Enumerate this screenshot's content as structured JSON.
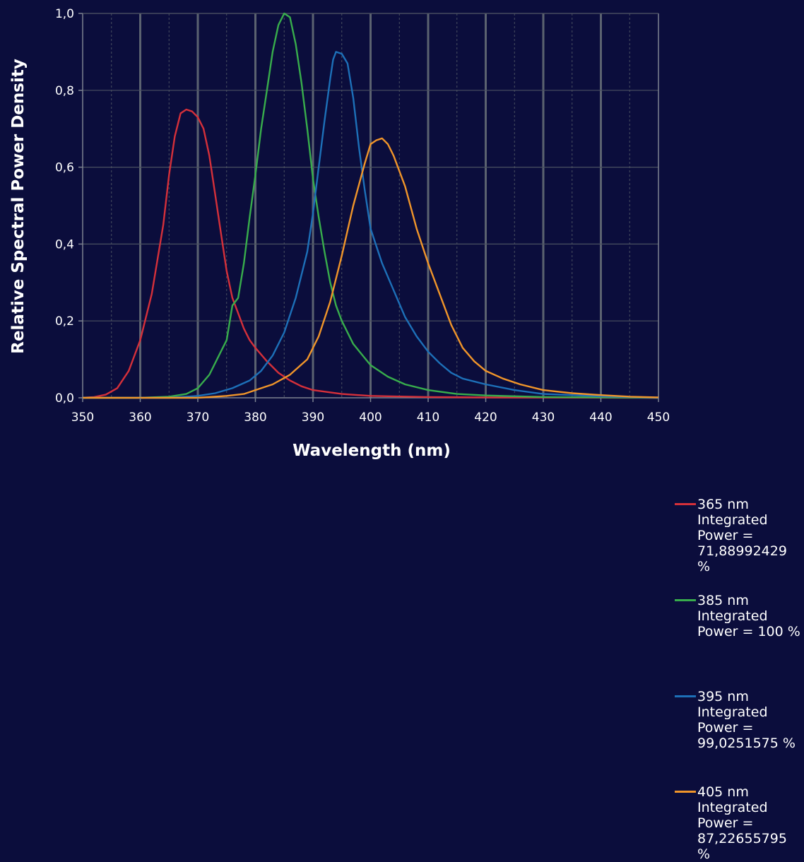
{
  "chart_data": {
    "type": "line",
    "xlabel": "Wavelength (nm)",
    "ylabel": "Relative Spectral Power Density",
    "xlim": [
      350,
      450
    ],
    "ylim": [
      0,
      1.0
    ],
    "x_ticks": [
      350,
      360,
      370,
      380,
      390,
      400,
      410,
      420,
      430,
      440,
      450
    ],
    "x_tick_labels": [
      "350",
      "360",
      "370",
      "380",
      "390",
      "400",
      "410",
      "420",
      "430",
      "440",
      "450"
    ],
    "y_ticks": [
      0,
      0.2,
      0.4,
      0.6,
      0.8,
      1.0
    ],
    "y_tick_labels": [
      "0,0",
      "0,2",
      "0,4",
      "0,6",
      "0,8",
      "1,0"
    ],
    "grid": true,
    "legend_position": "right",
    "series": [
      {
        "name": "365 nm",
        "legend_text": "Integrated\nPower =\n71,88992429 %",
        "color": "#d5303a",
        "points": [
          [
            350,
            0
          ],
          [
            352,
            0.002
          ],
          [
            354,
            0.008
          ],
          [
            356,
            0.025
          ],
          [
            358,
            0.07
          ],
          [
            360,
            0.15
          ],
          [
            362,
            0.27
          ],
          [
            364,
            0.45
          ],
          [
            365,
            0.58
          ],
          [
            366,
            0.68
          ],
          [
            367,
            0.74
          ],
          [
            368,
            0.75
          ],
          [
            369,
            0.745
          ],
          [
            370,
            0.73
          ],
          [
            371,
            0.7
          ],
          [
            372,
            0.63
          ],
          [
            373,
            0.53
          ],
          [
            374,
            0.43
          ],
          [
            375,
            0.33
          ],
          [
            376,
            0.26
          ],
          [
            377,
            0.22
          ],
          [
            378,
            0.18
          ],
          [
            379,
            0.15
          ],
          [
            380,
            0.13
          ],
          [
            382,
            0.095
          ],
          [
            384,
            0.065
          ],
          [
            386,
            0.045
          ],
          [
            388,
            0.03
          ],
          [
            390,
            0.02
          ],
          [
            395,
            0.01
          ],
          [
            400,
            0.005
          ],
          [
            410,
            0.002
          ],
          [
            420,
            0.001
          ],
          [
            450,
            0
          ]
        ]
      },
      {
        "name": "385 nm",
        "legend_text": "Integrated\nPower = 100 %",
        "color": "#38ad4c",
        "points": [
          [
            350,
            0
          ],
          [
            360,
            0
          ],
          [
            365,
            0.003
          ],
          [
            368,
            0.01
          ],
          [
            370,
            0.025
          ],
          [
            372,
            0.06
          ],
          [
            374,
            0.12
          ],
          [
            375,
            0.15
          ],
          [
            376,
            0.24
          ],
          [
            377,
            0.26
          ],
          [
            378,
            0.35
          ],
          [
            379,
            0.47
          ],
          [
            380,
            0.58
          ],
          [
            381,
            0.7
          ],
          [
            382,
            0.8
          ],
          [
            383,
            0.9
          ],
          [
            384,
            0.97
          ],
          [
            385,
            1.0
          ],
          [
            386,
            0.99
          ],
          [
            387,
            0.92
          ],
          [
            388,
            0.82
          ],
          [
            389,
            0.7
          ],
          [
            390,
            0.57
          ],
          [
            391,
            0.47
          ],
          [
            392,
            0.38
          ],
          [
            393,
            0.3
          ],
          [
            394,
            0.24
          ],
          [
            395,
            0.2
          ],
          [
            397,
            0.14
          ],
          [
            400,
            0.085
          ],
          [
            403,
            0.055
          ],
          [
            406,
            0.035
          ],
          [
            410,
            0.02
          ],
          [
            415,
            0.01
          ],
          [
            420,
            0.006
          ],
          [
            430,
            0.002
          ],
          [
            450,
            0
          ]
        ]
      },
      {
        "name": "395 nm",
        "legend_text": "Integrated\nPower =\n99,0251575 %",
        "color": "#1d70b8",
        "points": [
          [
            350,
            0
          ],
          [
            365,
            0
          ],
          [
            370,
            0.005
          ],
          [
            373,
            0.012
          ],
          [
            376,
            0.025
          ],
          [
            379,
            0.045
          ],
          [
            381,
            0.07
          ],
          [
            383,
            0.11
          ],
          [
            385,
            0.17
          ],
          [
            387,
            0.26
          ],
          [
            389,
            0.38
          ],
          [
            390,
            0.48
          ],
          [
            391,
            0.6
          ],
          [
            392,
            0.72
          ],
          [
            393,
            0.83
          ],
          [
            393.5,
            0.88
          ],
          [
            394,
            0.9
          ],
          [
            395,
            0.895
          ],
          [
            396,
            0.87
          ],
          [
            397,
            0.78
          ],
          [
            398,
            0.65
          ],
          [
            399,
            0.54
          ],
          [
            400,
            0.44
          ],
          [
            402,
            0.35
          ],
          [
            404,
            0.28
          ],
          [
            406,
            0.21
          ],
          [
            408,
            0.16
          ],
          [
            410,
            0.12
          ],
          [
            412,
            0.09
          ],
          [
            414,
            0.065
          ],
          [
            416,
            0.05
          ],
          [
            420,
            0.035
          ],
          [
            425,
            0.02
          ],
          [
            430,
            0.01
          ],
          [
            440,
            0.004
          ],
          [
            450,
            0
          ]
        ]
      },
      {
        "name": "405 nm",
        "legend_text": "Integrated\nPower =\n87,22655795 %",
        "color": "#f0952a",
        "points": [
          [
            350,
            0
          ],
          [
            370,
            0
          ],
          [
            375,
            0.005
          ],
          [
            378,
            0.01
          ],
          [
            380,
            0.02
          ],
          [
            383,
            0.035
          ],
          [
            386,
            0.06
          ],
          [
            389,
            0.1
          ],
          [
            391,
            0.16
          ],
          [
            393,
            0.25
          ],
          [
            395,
            0.37
          ],
          [
            397,
            0.5
          ],
          [
            399,
            0.61
          ],
          [
            400,
            0.66
          ],
          [
            401,
            0.67
          ],
          [
            402,
            0.675
          ],
          [
            403,
            0.66
          ],
          [
            404,
            0.63
          ],
          [
            406,
            0.55
          ],
          [
            408,
            0.44
          ],
          [
            410,
            0.35
          ],
          [
            412,
            0.27
          ],
          [
            414,
            0.19
          ],
          [
            416,
            0.13
          ],
          [
            418,
            0.095
          ],
          [
            420,
            0.07
          ],
          [
            423,
            0.05
          ],
          [
            426,
            0.035
          ],
          [
            430,
            0.02
          ],
          [
            435,
            0.012
          ],
          [
            440,
            0.007
          ],
          [
            445,
            0.003
          ],
          [
            450,
            0.001
          ]
        ]
      }
    ]
  }
}
